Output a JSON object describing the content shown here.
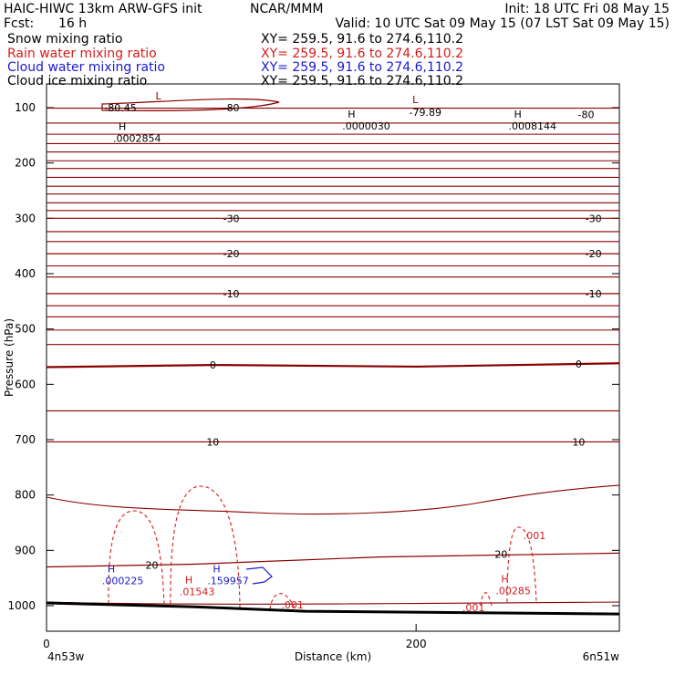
{
  "header": {
    "model": "HAIC-HIWC 13km ARW-GFS init",
    "org": "NCAR/MMM",
    "init": "Init: 18 UTC Fri 08 May 15",
    "fcst_label": "Fcst:",
    "fcst_value": "16 h",
    "valid": "Valid: 10 UTC Sat 09 May 15 (07 LST Sat 09 May 15)"
  },
  "fields": [
    {
      "name": "Snow mixing ratio",
      "xy": "XY= 259.5, 91.6 to 274.6,110.2",
      "color": "#000000"
    },
    {
      "name": "Rain water mixing ratio",
      "xy": "XY= 259.5, 91.6 to 274.6,110.2",
      "color": "#d81b1b"
    },
    {
      "name": "Cloud water mixing ratio",
      "xy": "XY= 259.5, 91.6 to 274.6,110.2",
      "color": "#1a1ad0"
    },
    {
      "name": "Cloud ice mixing ratio",
      "xy": "XY= 259.5, 91.6 to 274.6,110.2",
      "color": "#000000"
    }
  ],
  "colors": {
    "temp": "#8b0000",
    "rain": "#d81b1b",
    "cloud": "#1a1ad0",
    "terrain": "#000000"
  },
  "chart_data": {
    "type": "cross-section contour",
    "xlabel": "Distance (km)",
    "ylabel": "Pressure (hPa)",
    "xlim": [
      0,
      310
    ],
    "ylim": [
      1050,
      60
    ],
    "x_ticks": [
      0,
      200
    ],
    "y_ticks": [
      100,
      200,
      300,
      400,
      500,
      600,
      700,
      800,
      900,
      1000
    ],
    "left_endpoint": "4n53w",
    "right_endpoint": "6n51w",
    "temperature_contours": [
      {
        "label": "-30",
        "points": [
          [
            0,
            300
          ],
          [
            310,
            300
          ]
        ]
      },
      {
        "label": "-20",
        "points": [
          [
            0,
            364
          ],
          [
            310,
            364
          ]
        ]
      },
      {
        "label": "-10",
        "points": [
          [
            0,
            436
          ],
          [
            310,
            436
          ]
        ]
      },
      {
        "label": "0",
        "points": [
          [
            0,
            569
          ],
          [
            90,
            565
          ],
          [
            200,
            568
          ],
          [
            310,
            562
          ]
        ]
      },
      {
        "label": "10",
        "points": [
          [
            0,
            704
          ],
          [
            310,
            704
          ]
        ]
      },
      {
        "label": "20",
        "points": [
          [
            0,
            930
          ],
          [
            80,
            925
          ],
          [
            180,
            912
          ],
          [
            310,
            905
          ]
        ]
      }
    ],
    "contour_labels": [
      {
        "text": "-80.45",
        "x": 40,
        "p": 100
      },
      {
        "text": "-80",
        "x": 100,
        "p": 100
      },
      {
        "text": "-79.89",
        "x": 205,
        "p": 108
      },
      {
        "text": "-80",
        "x": 292,
        "p": 112
      },
      {
        "text": "-30",
        "x": 100,
        "p": 300
      },
      {
        "text": "-30",
        "x": 296,
        "p": 300
      },
      {
        "text": "-20",
        "x": 100,
        "p": 364
      },
      {
        "text": "-20",
        "x": 296,
        "p": 364
      },
      {
        "text": "-10",
        "x": 100,
        "p": 436
      },
      {
        "text": "-10",
        "x": 296,
        "p": 436
      },
      {
        "text": "0",
        "x": 90,
        "p": 565
      },
      {
        "text": "0",
        "x": 288,
        "p": 563
      },
      {
        "text": "10",
        "x": 90,
        "p": 704
      },
      {
        "text": "10",
        "x": 288,
        "p": 704
      },
      {
        "text": "20",
        "x": 57,
        "p": 927
      },
      {
        "text": "20",
        "x": 246,
        "p": 907
      }
    ],
    "extrema": [
      {
        "type": "L",
        "value": "",
        "x": 59,
        "p": 85,
        "field": "temp"
      },
      {
        "type": "L",
        "value": "",
        "x": 198,
        "p": 92,
        "field": "temp"
      },
      {
        "type": "H",
        "value": ".0002854",
        "x": 39,
        "p": 140,
        "field": "temp"
      },
      {
        "type": "H",
        "value": ".0000030",
        "x": 163,
        "p": 118,
        "field": "temp"
      },
      {
        "type": "H",
        "value": ".0008144",
        "x": 253,
        "p": 118,
        "field": "temp"
      },
      {
        "type": "H",
        "value": ".000225",
        "x": 33,
        "p": 940,
        "field": "cloud"
      },
      {
        "type": "H",
        "value": ".159957",
        "x": 90,
        "p": 940,
        "field": "cloud"
      },
      {
        "type": "H",
        "value": ".01543",
        "x": 75,
        "p": 960,
        "field": "rain"
      },
      {
        "type": "H",
        "value": ".00285",
        "x": 246,
        "p": 958,
        "field": "rain"
      },
      {
        "type": "",
        "value": ".001",
        "x": 130,
        "p": 1005,
        "field": "rain"
      },
      {
        "type": "",
        "value": ".001",
        "x": 228,
        "p": 1010,
        "field": "rain"
      },
      {
        "type": "",
        "value": ".001",
        "x": 261,
        "p": 880,
        "field": "rain"
      }
    ],
    "terrain_surface": [
      [
        0,
        995
      ],
      [
        80,
        1002
      ],
      [
        140,
        1010
      ],
      [
        310,
        1015
      ]
    ]
  }
}
